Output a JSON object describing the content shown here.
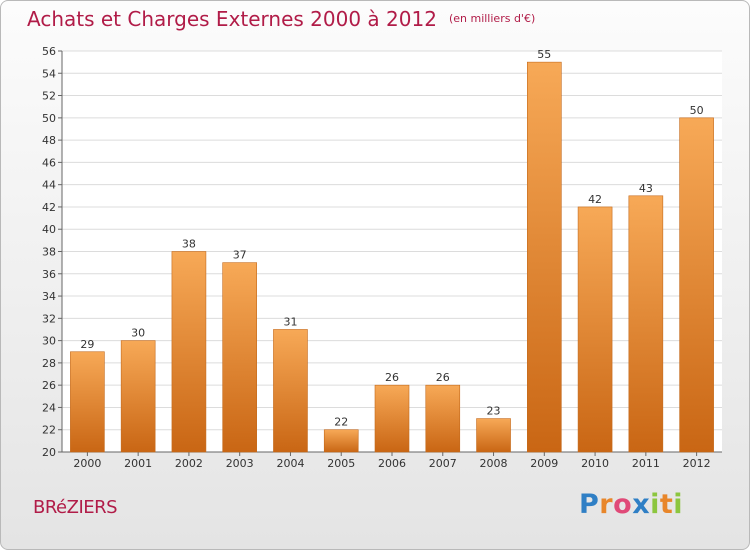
{
  "chart_data": {
    "type": "bar",
    "title": "Achats et Charges Externes 2000 à 2012",
    "unit": "(en milliers d'€)",
    "categories": [
      "2000",
      "2001",
      "2002",
      "2003",
      "2004",
      "2005",
      "2006",
      "2007",
      "2008",
      "2009",
      "2010",
      "2011",
      "2012"
    ],
    "values": [
      29,
      30,
      38,
      37,
      31,
      22,
      26,
      26,
      23,
      55,
      42,
      43,
      50
    ],
    "xlabel": "",
    "ylabel": "",
    "ylim": [
      20,
      56
    ],
    "yticks": [
      20,
      22,
      24,
      26,
      28,
      30,
      32,
      34,
      36,
      38,
      40,
      42,
      44,
      46,
      48,
      50,
      52,
      54,
      56
    ],
    "grid": true,
    "legend": "none",
    "bar_color": "#f0903a"
  },
  "footer": {
    "commune": "BRéZIERS"
  },
  "brand": {
    "letters": [
      "P",
      "r",
      "o",
      "x",
      "i",
      "t",
      "i"
    ],
    "colors": [
      "#2f7fc5",
      "#e8862a",
      "#e04a78",
      "#2f7fc5",
      "#8cc63f",
      "#e8862a",
      "#8cc63f"
    ]
  }
}
